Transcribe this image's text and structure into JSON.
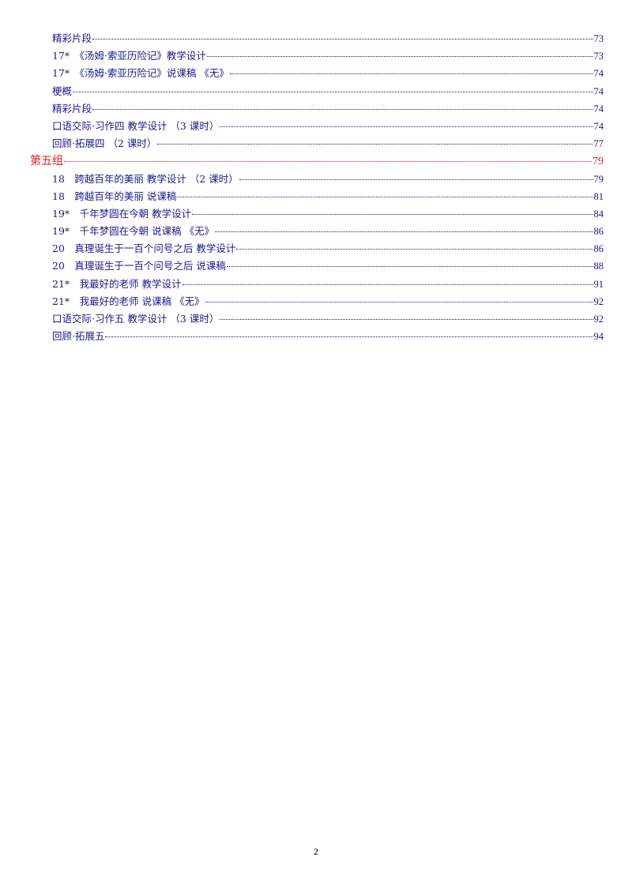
{
  "toc": {
    "entries": [
      {
        "title": "精彩片段",
        "page": "73",
        "level": 2
      },
      {
        "title": "17*　《汤姆·索亚历险记》教学设计",
        "page": "73",
        "level": 2
      },
      {
        "title": "17*　《汤姆·索亚历险记》说课稿 《无》",
        "page": "74",
        "level": 2
      },
      {
        "title": "梗概",
        "page": "74",
        "level": 2
      },
      {
        "title": "精彩片段",
        "page": "74",
        "level": 2
      },
      {
        "title": "口语交际·习作四 教学设计 （3 课时）",
        "page": "74",
        "level": 2
      },
      {
        "title": "回顾·拓展四 （2 课时）",
        "page": "77",
        "level": 2
      },
      {
        "title": "第五组",
        "page": "79",
        "level": 1
      },
      {
        "title": "18　跨越百年的美丽 教学设计 （2 课时）",
        "page": "79",
        "level": 2
      },
      {
        "title": "18　跨越百年的美丽 说课稿",
        "page": "81",
        "level": 2
      },
      {
        "title": "19*　千年梦圆在今朝 教学设计",
        "page": "84",
        "level": 2
      },
      {
        "title": "19*　千年梦圆在今朝 说课稿 《无》",
        "page": "86",
        "level": 2
      },
      {
        "title": "20　真理诞生于一百个问号之后 教学设计",
        "page": "86",
        "level": 2
      },
      {
        "title": "20　真理诞生于一百个问号之后 说课稿",
        "page": "88",
        "level": 2
      },
      {
        "title": "21*　我最好的老师 教学设计",
        "page": "91",
        "level": 2
      },
      {
        "title": "21*　我最好的老师 说课稿 《无》",
        "page": "92",
        "level": 2
      },
      {
        "title": "口语交际·习作五 教学设计 （3 课时）",
        "page": "92",
        "level": 2
      },
      {
        "title": "回顾·拓展五",
        "page": "94",
        "level": 2
      }
    ]
  },
  "footer": {
    "page_number": "2"
  },
  "colors": {
    "entry_text": "#1a1a8c",
    "group_heading": "#e0191f"
  }
}
